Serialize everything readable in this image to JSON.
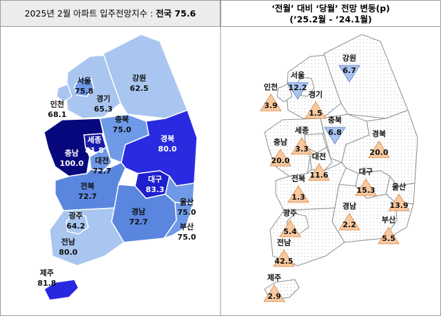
{
  "left_panel": {
    "title": "2025년 2월 아파트 입주전망지수 : ",
    "title_emphasis": "전국 75.6",
    "regions": [
      {
        "name": "서울",
        "value": "75.8",
        "color": "#6f9ae8"
      },
      {
        "name": "경기",
        "value": "65.3",
        "color": "#a9c6f0"
      },
      {
        "name": "인천",
        "value": "68.1",
        "color": "#a9c6f0"
      },
      {
        "name": "강원",
        "value": "62.5",
        "color": "#a9c6f0"
      },
      {
        "name": "충북",
        "value": "75.0",
        "color": "#6f9ae8"
      },
      {
        "name": "세종",
        "value": "81.8",
        "color": "#1a1aa8"
      },
      {
        "name": "충남",
        "value": "100.0",
        "color": "#08087e"
      },
      {
        "name": "대전",
        "value": "72.7",
        "color": "#6f9ae8"
      },
      {
        "name": "경북",
        "value": "80.0",
        "color": "#2a2ae0"
      },
      {
        "name": "대구",
        "value": "83.3",
        "color": "#1f1fd0"
      },
      {
        "name": "전북",
        "value": "72.7",
        "color": "#5a86e0"
      },
      {
        "name": "광주",
        "value": "64.2",
        "color": "#a9c6f0"
      },
      {
        "name": "전남",
        "value": "80.0",
        "color": "#a9c6f0"
      },
      {
        "name": "경남",
        "value": "72.7",
        "color": "#5a86e0"
      },
      {
        "name": "울산",
        "value": "75.0",
        "color": "#6f9ae8"
      },
      {
        "name": "부산",
        "value": "75.0",
        "color": "#6f9ae8"
      },
      {
        "name": "제주",
        "value": "81.8",
        "color": "#2828e0"
      }
    ]
  },
  "right_panel": {
    "title_line1": "‘전월’ 대비 ‘당월’ 전망 변동(p)",
    "title_line2": "(’25.2월 - ’24.1월)",
    "regions": [
      {
        "name": "서울",
        "value": "12.2",
        "direction": "down"
      },
      {
        "name": "경기",
        "value": "1.5",
        "direction": "up"
      },
      {
        "name": "인천",
        "value": "3.9",
        "direction": "up"
      },
      {
        "name": "강원",
        "value": "6.7",
        "direction": "down"
      },
      {
        "name": "충북",
        "value": "6.8",
        "direction": "down"
      },
      {
        "name": "세종",
        "value": "3.3",
        "direction": "up"
      },
      {
        "name": "충남",
        "value": "20.0",
        "direction": "up"
      },
      {
        "name": "대전",
        "value": "11.6",
        "direction": "up"
      },
      {
        "name": "경북",
        "value": "20.0",
        "direction": "up"
      },
      {
        "name": "대구",
        "value": "15.3",
        "direction": "up"
      },
      {
        "name": "전북",
        "value": "1.3",
        "direction": "up"
      },
      {
        "name": "광주",
        "value": "5.4",
        "direction": "up"
      },
      {
        "name": "전남",
        "value": "42.5",
        "direction": "up"
      },
      {
        "name": "경남",
        "value": "2.2",
        "direction": "up"
      },
      {
        "name": "울산",
        "value": "13.9",
        "direction": "up"
      },
      {
        "name": "부산",
        "value": "5.5",
        "direction": "up"
      },
      {
        "name": "제주",
        "value": "2.9",
        "direction": "up"
      }
    ]
  }
}
